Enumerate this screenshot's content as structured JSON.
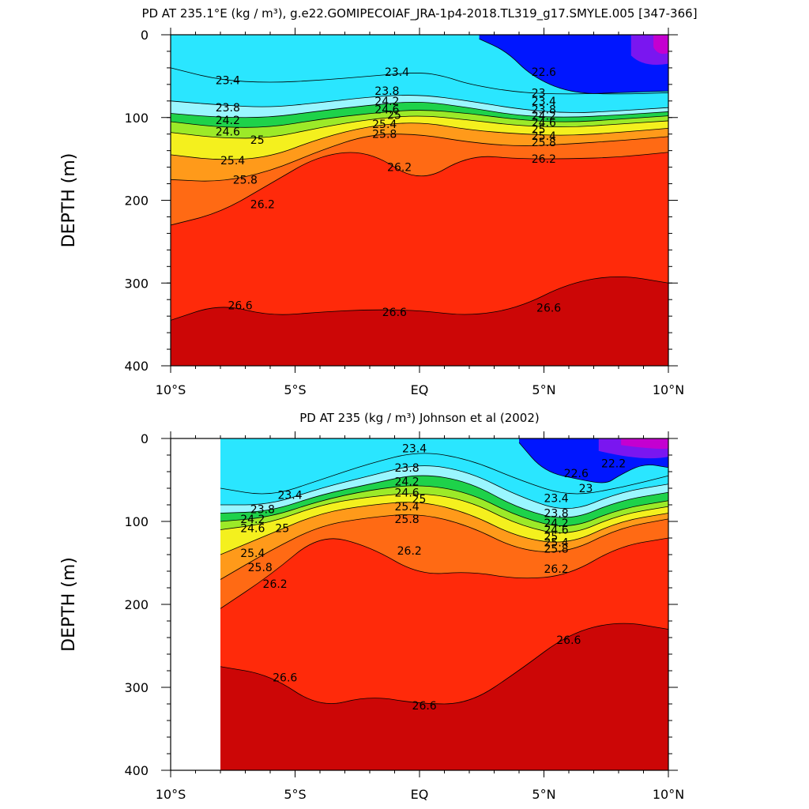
{
  "chart_data": [
    {
      "type": "heatmap",
      "title": "PD AT 235.1°E (kg / m³), g.e22.GOMIPECOIAF_JRA-1p4-2018.TL319_g17.SMYLE.005 [347-366]",
      "ylabel": "DEPTH (m)",
      "xlabel": "",
      "xlim": [
        -10,
        10
      ],
      "ylim": [
        400,
        0
      ],
      "xticks": [
        "10°S",
        "5°S",
        "EQ",
        "5°N",
        "10°N"
      ],
      "yticks": [
        "0",
        "100",
        "200",
        "300",
        "400"
      ],
      "contour_interval": 0.2,
      "data_xrange": [
        -10,
        10
      ],
      "isopycnals": [
        {
          "level": 22.6,
          "x": [
            2.4,
            3.5,
            4.5,
            6.0,
            8.0,
            10.0
          ],
          "depth": [
            5,
            20,
            50,
            70,
            72,
            70
          ]
        },
        {
          "level": 23.4,
          "x": [
            -10,
            -8,
            -6,
            -4,
            -2,
            0,
            1,
            2,
            4,
            6,
            8,
            10
          ],
          "depth": [
            40,
            55,
            58,
            55,
            50,
            45,
            50,
            60,
            70,
            72,
            70,
            68
          ]
        },
        {
          "level": 23.8,
          "x": [
            -10,
            -8,
            -6,
            -4,
            -2,
            0,
            2,
            4,
            6,
            8,
            10
          ],
          "depth": [
            80,
            85,
            88,
            82,
            75,
            72,
            80,
            90,
            95,
            92,
            88
          ]
        },
        {
          "level": 24.2,
          "x": [
            -10,
            -8,
            -6,
            -4,
            -2,
            0,
            2,
            4,
            6,
            8,
            10
          ],
          "depth": [
            95,
            100,
            100,
            92,
            85,
            80,
            88,
            98,
            100,
            97,
            93
          ]
        },
        {
          "level": 24.6,
          "x": [
            -10,
            -8,
            -6,
            -4,
            -2,
            0,
            2,
            4,
            6,
            8,
            10
          ],
          "depth": [
            105,
            112,
            112,
            102,
            95,
            90,
            95,
            103,
            106,
            102,
            98
          ]
        },
        {
          "level": 25.0,
          "x": [
            -10,
            -8,
            -6,
            -4,
            -2,
            0,
            2,
            4,
            6,
            8,
            10
          ],
          "depth": [
            118,
            125,
            125,
            112,
            102,
            97,
            103,
            110,
            112,
            108,
            104
          ]
        },
        {
          "level": 25.4,
          "x": [
            -10,
            -8,
            -6,
            -4,
            -2,
            0,
            2,
            4,
            6,
            8,
            10
          ],
          "depth": [
            145,
            152,
            148,
            125,
            110,
            105,
            115,
            120,
            122,
            118,
            113
          ]
        },
        {
          "level": 25.8,
          "x": [
            -10,
            -8,
            -6,
            -4,
            -2,
            0,
            2,
            4,
            6,
            8,
            10
          ],
          "depth": [
            175,
            178,
            165,
            140,
            120,
            120,
            130,
            135,
            132,
            128,
            123
          ]
        },
        {
          "level": 26.2,
          "x": [
            -10,
            -8,
            -6,
            -4,
            -2,
            0,
            2,
            4,
            6,
            8,
            10
          ],
          "depth": [
            230,
            215,
            180,
            145,
            140,
            180,
            145,
            150,
            150,
            148,
            142
          ]
        },
        {
          "level": 26.6,
          "x": [
            -10,
            -8,
            -6,
            -4,
            -2,
            0,
            2,
            4,
            6,
            8,
            10
          ],
          "depth": [
            345,
            325,
            340,
            335,
            332,
            333,
            340,
            330,
            300,
            290,
            300
          ]
        }
      ],
      "contour_labels": [
        {
          "text": "23.4",
          "x": -8.2,
          "depth": 55
        },
        {
          "text": "23.8",
          "x": -8.2,
          "depth": 88
        },
        {
          "text": "24.2",
          "x": -8.2,
          "depth": 103
        },
        {
          "text": "24.6",
          "x": -8.2,
          "depth": 117
        },
        {
          "text": "25",
          "x": -6.8,
          "depth": 127
        },
        {
          "text": "25.4",
          "x": -8.0,
          "depth": 152
        },
        {
          "text": "25.8",
          "x": -7.5,
          "depth": 175
        },
        {
          "text": "26.2",
          "x": -6.8,
          "depth": 205
        },
        {
          "text": "26.6",
          "x": -7.7,
          "depth": 327
        },
        {
          "text": "23.4",
          "x": -1.4,
          "depth": 45
        },
        {
          "text": "23.8",
          "x": -1.8,
          "depth": 68
        },
        {
          "text": "24.2",
          "x": -1.8,
          "depth": 80
        },
        {
          "text": "24.6",
          "x": -1.8,
          "depth": 90
        },
        {
          "text": "25",
          "x": -1.3,
          "depth": 97
        },
        {
          "text": "25.4",
          "x": -1.9,
          "depth": 108
        },
        {
          "text": "25.8",
          "x": -1.9,
          "depth": 120
        },
        {
          "text": "26.2",
          "x": -1.3,
          "depth": 160
        },
        {
          "text": "26.6",
          "x": -1.5,
          "depth": 335
        },
        {
          "text": "22.6",
          "x": 4.5,
          "depth": 45
        },
        {
          "text": "23",
          "x": 4.5,
          "depth": 70
        },
        {
          "text": "23.4",
          "x": 4.5,
          "depth": 80
        },
        {
          "text": "23.8",
          "x": 4.5,
          "depth": 90
        },
        {
          "text": "24.2",
          "x": 4.5,
          "depth": 98
        },
        {
          "text": "24.6",
          "x": 4.5,
          "depth": 106
        },
        {
          "text": "25",
          "x": 4.5,
          "depth": 114
        },
        {
          "text": "25.4",
          "x": 4.5,
          "depth": 122
        },
        {
          "text": "25.8",
          "x": 4.5,
          "depth": 130
        },
        {
          "text": "26.2",
          "x": 4.5,
          "depth": 150
        },
        {
          "text": "26.6",
          "x": 4.7,
          "depth": 330
        }
      ]
    },
    {
      "type": "heatmap",
      "title": "PD AT 235 (kg / m³) Johnson et al (2002)",
      "ylabel": "DEPTH (m)",
      "xlabel": "",
      "xlim": [
        -10,
        10
      ],
      "ylim": [
        400,
        0
      ],
      "xticks": [
        "10°S",
        "5°S",
        "EQ",
        "5°N",
        "10°N"
      ],
      "yticks": [
        "0",
        "100",
        "200",
        "300",
        "400"
      ],
      "contour_interval": 0.2,
      "data_xrange": [
        -8,
        10
      ],
      "isopycnals": [
        {
          "level": 22.6,
          "x": [
            4.0,
            5.0,
            6.5,
            7.5,
            8.0,
            9.0,
            10.0
          ],
          "depth": [
            5,
            40,
            50,
            55,
            45,
            30,
            35
          ]
        },
        {
          "level": 23.4,
          "x": [
            -8,
            -6,
            -4,
            -2,
            0,
            2,
            4,
            6,
            8,
            10
          ],
          "depth": [
            60,
            70,
            50,
            30,
            15,
            25,
            50,
            70,
            60,
            45
          ]
        },
        {
          "level": 23.8,
          "x": [
            -8,
            -6,
            -4,
            -2,
            0,
            2,
            4,
            6,
            8,
            10
          ],
          "depth": [
            80,
            80,
            60,
            45,
            30,
            40,
            70,
            90,
            65,
            55
          ]
        },
        {
          "level": 24.2,
          "x": [
            -8,
            -6,
            -4,
            -2,
            0,
            2,
            4,
            6,
            8,
            10
          ],
          "depth": [
            90,
            88,
            68,
            55,
            42,
            52,
            85,
            100,
            75,
            65
          ]
        },
        {
          "level": 24.6,
          "x": [
            -8,
            -6,
            -4,
            -2,
            0,
            2,
            4,
            6,
            8,
            10
          ],
          "depth": [
            100,
            95,
            75,
            62,
            55,
            65,
            95,
            110,
            85,
            75
          ]
        },
        {
          "level": 25.0,
          "x": [
            -8,
            -6,
            -4,
            -2,
            0,
            2,
            4,
            6,
            8,
            10
          ],
          "depth": [
            110,
            102,
            80,
            70,
            65,
            75,
            105,
            118,
            92,
            82
          ]
        },
        {
          "level": 25.4,
          "x": [
            -8,
            -6,
            -4,
            -2,
            0,
            2,
            4,
            6,
            8,
            10
          ],
          "depth": [
            140,
            115,
            90,
            80,
            75,
            90,
            120,
            128,
            100,
            90
          ]
        },
        {
          "level": 25.8,
          "x": [
            -8,
            -6,
            -4,
            -2,
            0,
            2,
            4,
            6,
            8,
            10
          ],
          "depth": [
            170,
            135,
            105,
            95,
            90,
            105,
            135,
            138,
            108,
            97
          ]
        },
        {
          "level": 26.2,
          "x": [
            -8,
            -6,
            -4,
            -2,
            0,
            2,
            4,
            6,
            8,
            10
          ],
          "depth": [
            205,
            165,
            115,
            130,
            165,
            160,
            170,
            165,
            130,
            120
          ]
        },
        {
          "level": 26.6,
          "x": [
            -8,
            -6,
            -4,
            -2,
            0,
            2,
            4,
            6,
            8,
            10
          ],
          "depth": [
            275,
            285,
            325,
            310,
            320,
            320,
            280,
            235,
            220,
            230
          ]
        }
      ],
      "contour_labels": [
        {
          "text": "23.4",
          "x": -5.7,
          "depth": 68
        },
        {
          "text": "23.8",
          "x": -6.8,
          "depth": 85
        },
        {
          "text": "24.2",
          "x": -7.2,
          "depth": 97
        },
        {
          "text": "24.6",
          "x": -7.2,
          "depth": 108
        },
        {
          "text": "25",
          "x": -5.8,
          "depth": 108
        },
        {
          "text": "25.4",
          "x": -7.2,
          "depth": 138
        },
        {
          "text": "25.8",
          "x": -6.9,
          "depth": 155
        },
        {
          "text": "26.2",
          "x": -6.3,
          "depth": 175
        },
        {
          "text": "26.6",
          "x": -5.9,
          "depth": 288
        },
        {
          "text": "23.4",
          "x": -0.7,
          "depth": 12
        },
        {
          "text": "23.8",
          "x": -1.0,
          "depth": 35
        },
        {
          "text": "24.2",
          "x": -1.0,
          "depth": 52
        },
        {
          "text": "24.6",
          "x": -1.0,
          "depth": 65
        },
        {
          "text": "25",
          "x": -0.3,
          "depth": 73
        },
        {
          "text": "25.4",
          "x": -1.0,
          "depth": 82
        },
        {
          "text": "25.8",
          "x": -1.0,
          "depth": 97
        },
        {
          "text": "26.2",
          "x": -0.9,
          "depth": 135
        },
        {
          "text": "26.6",
          "x": -0.3,
          "depth": 322
        },
        {
          "text": "22.6",
          "x": 5.8,
          "depth": 42
        },
        {
          "text": "22.2",
          "x": 7.3,
          "depth": 30
        },
        {
          "text": "23",
          "x": 6.4,
          "depth": 60
        },
        {
          "text": "23.4",
          "x": 5.0,
          "depth": 72
        },
        {
          "text": "23.8",
          "x": 5.0,
          "depth": 90
        },
        {
          "text": "24.2",
          "x": 5.0,
          "depth": 102
        },
        {
          "text": "24.6",
          "x": 5.0,
          "depth": 110
        },
        {
          "text": "25",
          "x": 5.0,
          "depth": 118
        },
        {
          "text": "25.4",
          "x": 5.0,
          "depth": 125
        },
        {
          "text": "25.8",
          "x": 5.0,
          "depth": 133
        },
        {
          "text": "26.2",
          "x": 5.0,
          "depth": 157
        },
        {
          "text": "26.6",
          "x": 5.5,
          "depth": 243
        }
      ]
    }
  ],
  "colors": {
    "levels": [
      21.8,
      22.2,
      22.6,
      23.0,
      23.4,
      23.8,
      24.2,
      24.6,
      25.0,
      25.4,
      25.8,
      26.2,
      26.6
    ],
    "fills": [
      "#c400d0",
      "#7a16f0",
      "#0016ff",
      "#0058ff",
      "#0098ff",
      "#00c8ff",
      "#2ae6ff",
      "#6ef0ff",
      "#9af6ff",
      "#1ed24a",
      "#9cea28",
      "#f4f01e",
      "#ffc21c",
      "#ff9a1a",
      "#ff6a14",
      "#ff2a0a",
      "#e80a0a",
      "#cc0606"
    ]
  }
}
